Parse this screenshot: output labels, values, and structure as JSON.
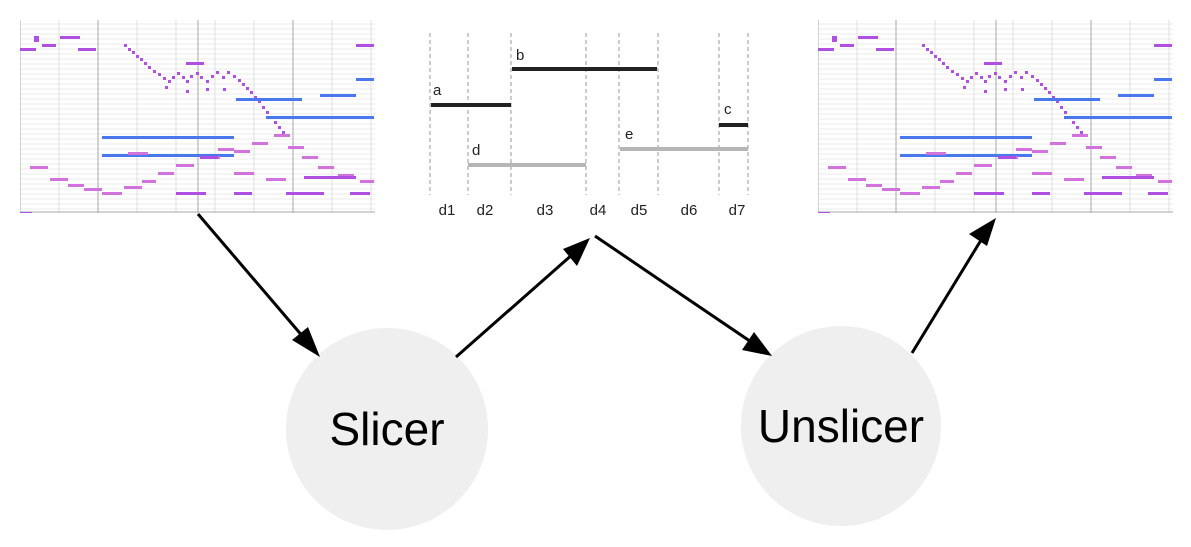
{
  "colors": {
    "melody": "#b04fe0",
    "accompaniment": "#d272dd",
    "harmony": "#4878ec",
    "grid": "#d8d8d8",
    "gridStrong": "#a8a8a8",
    "noteDark": "#222222",
    "noteLight": "#b6b6b6",
    "node": "#efefef"
  },
  "nodes": {
    "slicer": "Slicer",
    "unslicer": "Unslicer"
  },
  "slice_diagram": {
    "notes": [
      {
        "name": "a",
        "tone": "dark"
      },
      {
        "name": "b",
        "tone": "dark"
      },
      {
        "name": "c",
        "tone": "dark"
      },
      {
        "name": "d",
        "tone": "light"
      },
      {
        "name": "e",
        "tone": "light"
      }
    ],
    "slices": [
      "d1",
      "d2",
      "d3",
      "d4",
      "d5",
      "d6",
      "d7"
    ]
  }
}
